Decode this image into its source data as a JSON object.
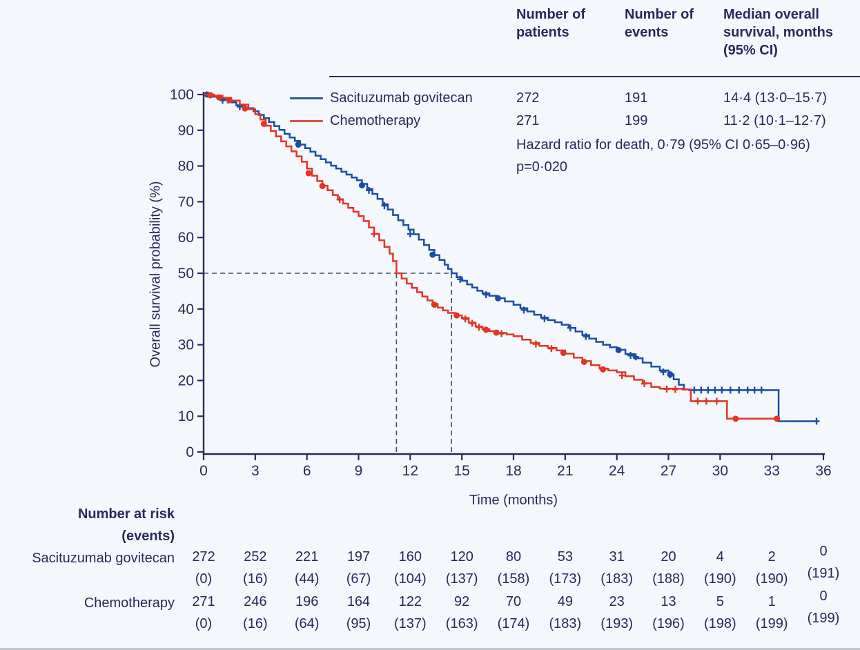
{
  "summary_table": {
    "col_patients": "Number of patients",
    "col_events": "Number of events",
    "col_median": "Median overall survival, months (95% CI)",
    "rows": [
      {
        "label": "Sacituzumab govitecan",
        "patients": "272",
        "events": "191",
        "median": "14·4 (13·0–15·7)",
        "color": "#2a5a94"
      },
      {
        "label": "Chemotherapy",
        "patients": "271",
        "events": "199",
        "median": "11·2 (10·1–12·7)",
        "color": "#d75548"
      }
    ],
    "hazard_ratio": "Hazard ratio for death, 0·79 (95% CI 0·65–0·96)",
    "p_value": "p=0·020"
  },
  "chart_data": {
    "type": "line",
    "subtype": "kaplan-meier-step",
    "xlabel": "Time (months)",
    "ylabel": "Overall survival probability (%)",
    "xlim": [
      0,
      36
    ],
    "ylim": [
      0,
      100
    ],
    "x_ticks": [
      0,
      3,
      6,
      9,
      12,
      15,
      18,
      21,
      24,
      27,
      30,
      33,
      36
    ],
    "y_ticks": [
      0,
      10,
      20,
      30,
      40,
      50,
      60,
      70,
      80,
      90,
      100
    ],
    "grid": false,
    "legend_position": "top-left-inside",
    "median_guides": {
      "y": 50,
      "x_values": [
        11.2,
        14.4
      ]
    },
    "axis_color": "#272b55",
    "guide_color": "#3f4a6e",
    "series": [
      {
        "name": "Sacituzumab govitecan",
        "color": "#1b4da3",
        "median_months": 14.4,
        "points": [
          [
            0,
            100
          ],
          [
            0.4,
            99.4
          ],
          [
            0.9,
            98.6
          ],
          [
            1.4,
            97.8
          ],
          [
            1.9,
            97.0
          ],
          [
            2.4,
            96.2
          ],
          [
            2.9,
            95.3
          ],
          [
            3.2,
            94.3
          ],
          [
            3.5,
            93.4
          ],
          [
            3.8,
            92.3
          ],
          [
            4.1,
            91.2
          ],
          [
            4.4,
            90.1
          ],
          [
            4.7,
            89.0
          ],
          [
            5.0,
            88.0
          ],
          [
            5.3,
            87.0
          ],
          [
            5.6,
            86.0
          ],
          [
            5.9,
            85.0
          ],
          [
            6.2,
            84.0
          ],
          [
            6.5,
            82.9
          ],
          [
            6.8,
            81.9
          ],
          [
            7.1,
            81.0
          ],
          [
            7.4,
            80.1
          ],
          [
            7.7,
            79.3
          ],
          [
            8.0,
            78.4
          ],
          [
            8.3,
            77.6
          ],
          [
            8.6,
            76.8
          ],
          [
            8.9,
            76.0
          ],
          [
            9.2,
            75.0
          ],
          [
            9.5,
            73.6
          ],
          [
            9.8,
            72.2
          ],
          [
            10.1,
            70.8
          ],
          [
            10.4,
            69.3
          ],
          [
            10.7,
            67.8
          ],
          [
            11.0,
            66.3
          ],
          [
            11.3,
            64.8
          ],
          [
            11.6,
            63.5
          ],
          [
            11.9,
            62.2
          ],
          [
            12.2,
            60.9
          ],
          [
            12.5,
            59.4
          ],
          [
            12.8,
            57.9
          ],
          [
            13.1,
            56.5
          ],
          [
            13.4,
            55.1
          ],
          [
            13.7,
            53.7
          ],
          [
            14.0,
            52.4
          ],
          [
            14.2,
            51.2
          ],
          [
            14.4,
            50.0
          ],
          [
            14.7,
            48.9
          ],
          [
            15.0,
            47.9
          ],
          [
            15.3,
            46.9
          ],
          [
            15.6,
            46.0
          ],
          [
            15.9,
            45.1
          ],
          [
            16.2,
            44.4
          ],
          [
            16.6,
            43.7
          ],
          [
            17.0,
            43.0
          ],
          [
            17.5,
            42.1
          ],
          [
            18.0,
            41.2
          ],
          [
            18.4,
            40.2
          ],
          [
            18.8,
            39.3
          ],
          [
            19.2,
            38.4
          ],
          [
            19.6,
            37.6
          ],
          [
            20.0,
            36.9
          ],
          [
            20.4,
            36.3
          ],
          [
            20.8,
            35.6
          ],
          [
            21.2,
            34.7
          ],
          [
            21.6,
            33.7
          ],
          [
            22.0,
            32.7
          ],
          [
            22.4,
            31.7
          ],
          [
            22.8,
            30.8
          ],
          [
            23.2,
            30.0
          ],
          [
            23.6,
            29.3
          ],
          [
            24.0,
            28.6
          ],
          [
            24.5,
            27.4
          ],
          [
            25.0,
            26.2
          ],
          [
            25.5,
            25.0
          ],
          [
            26.0,
            23.9
          ],
          [
            26.5,
            22.8
          ],
          [
            27.0,
            21.7
          ],
          [
            27.3,
            20.3
          ],
          [
            27.6,
            18.8
          ],
          [
            27.9,
            17.5
          ],
          [
            28.2,
            17.3
          ],
          [
            33.4,
            8.6
          ],
          [
            35.7,
            8.6
          ]
        ],
        "censor_marks": [
          [
            1.1,
            98.4
          ],
          [
            2.1,
            96.6
          ],
          [
            9.6,
            73.2
          ],
          [
            10.5,
            68.9
          ],
          [
            12.0,
            61.0
          ],
          [
            14.9,
            48.3
          ],
          [
            16.4,
            44.0
          ],
          [
            18.6,
            39.7
          ],
          [
            19.8,
            37.3
          ],
          [
            21.3,
            34.7
          ],
          [
            22.2,
            32.3
          ],
          [
            24.8,
            27.0
          ],
          [
            25.1,
            26.6
          ],
          [
            26.7,
            22.4
          ],
          [
            27.1,
            21.6
          ],
          [
            28.5,
            17.3
          ],
          [
            28.9,
            17.3
          ],
          [
            29.3,
            17.3
          ],
          [
            29.7,
            17.3
          ],
          [
            30.1,
            17.3
          ],
          [
            30.6,
            17.3
          ],
          [
            31.1,
            17.3
          ],
          [
            31.6,
            17.3
          ],
          [
            32.0,
            17.3
          ],
          [
            32.4,
            17.3
          ],
          [
            35.6,
            8.6
          ]
        ],
        "event_dots": [
          [
            0.2,
            100
          ],
          [
            5.5,
            86.0
          ],
          [
            9.2,
            74.6
          ],
          [
            13.3,
            55.2
          ],
          [
            17.1,
            43.0
          ],
          [
            24.1,
            28.5
          ],
          [
            27.1,
            21.7
          ]
        ]
      },
      {
        "name": "Chemotherapy",
        "color": "#e23527",
        "median_months": 11.2,
        "points": [
          [
            0,
            100
          ],
          [
            0.6,
            99.7
          ],
          [
            1.1,
            99.1
          ],
          [
            1.6,
            98.3
          ],
          [
            2.1,
            97.2
          ],
          [
            2.6,
            95.9
          ],
          [
            3.0,
            94.5
          ],
          [
            3.3,
            93.0
          ],
          [
            3.6,
            91.3
          ],
          [
            3.9,
            89.8
          ],
          [
            4.2,
            88.3
          ],
          [
            4.5,
            86.9
          ],
          [
            4.8,
            85.5
          ],
          [
            5.1,
            84.1
          ],
          [
            5.4,
            82.7
          ],
          [
            5.7,
            81.2
          ],
          [
            6.0,
            79.3
          ],
          [
            6.3,
            77.3
          ],
          [
            6.6,
            75.8
          ],
          [
            6.9,
            74.5
          ],
          [
            7.2,
            73.2
          ],
          [
            7.5,
            71.9
          ],
          [
            7.8,
            70.7
          ],
          [
            8.1,
            69.5
          ],
          [
            8.4,
            68.3
          ],
          [
            8.7,
            67.2
          ],
          [
            9.0,
            66.0
          ],
          [
            9.3,
            64.6
          ],
          [
            9.6,
            62.8
          ],
          [
            9.9,
            61.0
          ],
          [
            10.2,
            59.2
          ],
          [
            10.5,
            57.4
          ],
          [
            10.8,
            55.5
          ],
          [
            11.0,
            53.4
          ],
          [
            11.2,
            50.0
          ],
          [
            11.5,
            48.5
          ],
          [
            11.8,
            47.1
          ],
          [
            12.1,
            45.9
          ],
          [
            12.4,
            44.7
          ],
          [
            12.7,
            43.5
          ],
          [
            13.0,
            42.4
          ],
          [
            13.3,
            41.4
          ],
          [
            13.6,
            40.4
          ],
          [
            13.9,
            39.6
          ],
          [
            14.2,
            38.9
          ],
          [
            14.6,
            38.2
          ],
          [
            15.0,
            37.5
          ],
          [
            15.4,
            36.2
          ],
          [
            15.8,
            35.1
          ],
          [
            16.2,
            34.3
          ],
          [
            16.6,
            33.8
          ],
          [
            17.1,
            33.3
          ],
          [
            17.6,
            32.9
          ],
          [
            18.0,
            32.4
          ],
          [
            18.5,
            31.4
          ],
          [
            19.0,
            30.5
          ],
          [
            19.5,
            29.7
          ],
          [
            20.0,
            29.1
          ],
          [
            20.5,
            28.4
          ],
          [
            21.0,
            27.5
          ],
          [
            21.5,
            26.4
          ],
          [
            22.0,
            25.4
          ],
          [
            22.5,
            24.3
          ],
          [
            23.0,
            23.3
          ],
          [
            23.5,
            22.8
          ],
          [
            24.0,
            22.3
          ],
          [
            24.5,
            21.2
          ],
          [
            25.0,
            20.2
          ],
          [
            25.5,
            19.2
          ],
          [
            26.0,
            18.2
          ],
          [
            26.5,
            17.7
          ],
          [
            27.8,
            17.5
          ],
          [
            28.3,
            14.2
          ],
          [
            30.4,
            9.3
          ],
          [
            33.3,
            9.3
          ]
        ],
        "censor_marks": [
          [
            7.9,
            70.6
          ],
          [
            9.9,
            61.0
          ],
          [
            15.2,
            37.2
          ],
          [
            15.6,
            36.0
          ],
          [
            16.0,
            34.9
          ],
          [
            17.3,
            33.1
          ],
          [
            19.3,
            30.2
          ],
          [
            20.2,
            28.9
          ],
          [
            24.3,
            21.4
          ],
          [
            25.6,
            19.1
          ],
          [
            26.9,
            17.6
          ],
          [
            27.4,
            17.5
          ],
          [
            28.7,
            14.2
          ],
          [
            29.2,
            14.2
          ],
          [
            29.8,
            14.2
          ]
        ],
        "event_dots": [
          [
            0.4,
            99.8
          ],
          [
            0.9,
            99.2
          ],
          [
            1.5,
            98.4
          ],
          [
            2.4,
            96.1
          ],
          [
            3.5,
            91.8
          ],
          [
            6.1,
            78.0
          ],
          [
            6.9,
            74.4
          ],
          [
            13.4,
            41.2
          ],
          [
            14.7,
            38.2
          ],
          [
            16.4,
            34.2
          ],
          [
            17.0,
            33.4
          ],
          [
            20.9,
            27.7
          ],
          [
            22.1,
            25.2
          ],
          [
            23.2,
            23.1
          ],
          [
            30.9,
            9.3
          ],
          [
            33.3,
            9.3
          ]
        ]
      }
    ]
  },
  "risk_table": {
    "title_line1": "Number at risk",
    "title_line2": "(events)",
    "time_points": [
      0,
      3,
      6,
      9,
      12,
      15,
      18,
      21,
      24,
      27,
      30,
      33,
      36
    ],
    "rows": [
      {
        "label": "Sacituzumab govitecan",
        "at_risk": [
          "272",
          "252",
          "221",
          "197",
          "160",
          "120",
          "80",
          "53",
          "31",
          "20",
          "4",
          "2",
          "0"
        ],
        "events": [
          "(0)",
          "(16)",
          "(44)",
          "(67)",
          "(104)",
          "(137)",
          "(158)",
          "(173)",
          "(183)",
          "(188)",
          "(190)",
          "(190)",
          "(191)"
        ]
      },
      {
        "label": "Chemotherapy",
        "at_risk": [
          "271",
          "246",
          "196",
          "164",
          "122",
          "92",
          "70",
          "49",
          "23",
          "13",
          "5",
          "1",
          "0"
        ],
        "events": [
          "(0)",
          "(16)",
          "(64)",
          "(95)",
          "(137)",
          "(163)",
          "(174)",
          "(183)",
          "(193)",
          "(196)",
          "(198)",
          "(199)",
          "(199)"
        ]
      }
    ]
  }
}
